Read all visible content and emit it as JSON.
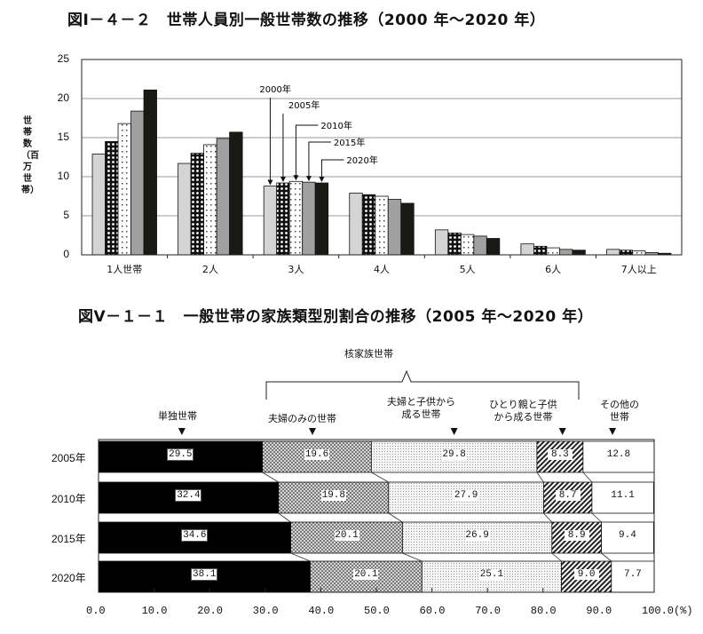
{
  "chart1": {
    "title": "図Ⅰ－４－２　世帯人員別一般世帯数の推移（2000 年～2020 年）",
    "ylabel": "世帯数（百万世帯）",
    "yticks": [
      "25",
      "20",
      "15",
      "10",
      "5",
      "0"
    ],
    "categories": [
      "1人世帯",
      "2人",
      "3人",
      "4人",
      "5人",
      "6人",
      "7人以上"
    ],
    "legend_labels": [
      "2000年",
      "2005年",
      "2010年",
      "2015年",
      "2020年"
    ]
  },
  "chart2": {
    "title": "図Ⅴ－１－１　一般世帯の家族類型別割合の推移（2005 年～2020 年）",
    "group_label": "核家族世帯",
    "category_labels": {
      "single": "単独世帯",
      "couple": "夫婦のみの世帯",
      "couple_children_1": "夫婦と子供から",
      "couple_children_2": "成る世帯",
      "single_parent_1": "ひとり親と子供",
      "single_parent_2": "から成る世帯",
      "other_1": "その他の",
      "other_2": "世帯"
    },
    "rows": [
      "2005年",
      "2010年",
      "2015年",
      "2020年"
    ],
    "xticks": [
      "0.0",
      "10.0",
      "20.0",
      "30.0",
      "40.0",
      "50.0",
      "60.0",
      "70.0",
      "80.0",
      "90.0",
      "100.0(%)"
    ]
  },
  "chart_data": [
    {
      "type": "bar",
      "title": "図Ⅰ－４－２　世帯人員別一般世帯数の推移（2000 年～2020 年）",
      "xlabel": "",
      "ylabel": "世帯数（百万世帯）",
      "ylim": [
        0,
        25
      ],
      "grid": true,
      "legend_position": "annotated arrows above 3人 group",
      "categories": [
        "1人世帯",
        "2人",
        "3人",
        "4人",
        "5人",
        "6人",
        "7人以上"
      ],
      "series": [
        {
          "name": "2000年",
          "values": [
            12.9,
            11.7,
            8.8,
            7.9,
            3.2,
            1.4,
            0.7
          ]
        },
        {
          "name": "2005年",
          "values": [
            14.5,
            13.0,
            9.2,
            7.7,
            2.8,
            1.1,
            0.6
          ]
        },
        {
          "name": "2010年",
          "values": [
            16.8,
            14.1,
            9.4,
            7.5,
            2.6,
            0.9,
            0.5
          ]
        },
        {
          "name": "2015年",
          "values": [
            18.4,
            14.9,
            9.3,
            7.1,
            2.4,
            0.7,
            0.3
          ]
        },
        {
          "name": "2020年",
          "values": [
            21.1,
            15.7,
            9.2,
            6.6,
            2.1,
            0.6,
            0.2
          ]
        }
      ]
    },
    {
      "type": "bar",
      "subtype": "stacked-horizontal-100",
      "title": "図Ⅴ－１－１　一般世帯の家族類型別割合の推移（2005 年～2020 年）",
      "xlabel": "(%)",
      "ylabel": "",
      "xlim": [
        0,
        100
      ],
      "categories": [
        "2005年",
        "2010年",
        "2015年",
        "2020年"
      ],
      "group_annotation": {
        "label": "核家族世帯",
        "spans": [
          "夫婦のみの世帯",
          "夫婦と子供から成る世帯",
          "ひとり親と子供から成る世帯"
        ]
      },
      "series": [
        {
          "name": "単独世帯",
          "values": [
            29.5,
            32.4,
            34.6,
            38.1
          ]
        },
        {
          "name": "夫婦のみの世帯",
          "values": [
            19.6,
            19.8,
            20.1,
            20.1
          ]
        },
        {
          "name": "夫婦と子供から成る世帯",
          "values": [
            29.8,
            27.9,
            26.9,
            25.1
          ]
        },
        {
          "name": "ひとり親と子供から成る世帯",
          "values": [
            8.3,
            8.7,
            8.9,
            9.0
          ]
        },
        {
          "name": "その他の世帯",
          "values": [
            12.8,
            11.1,
            9.4,
            7.7
          ]
        }
      ]
    }
  ]
}
